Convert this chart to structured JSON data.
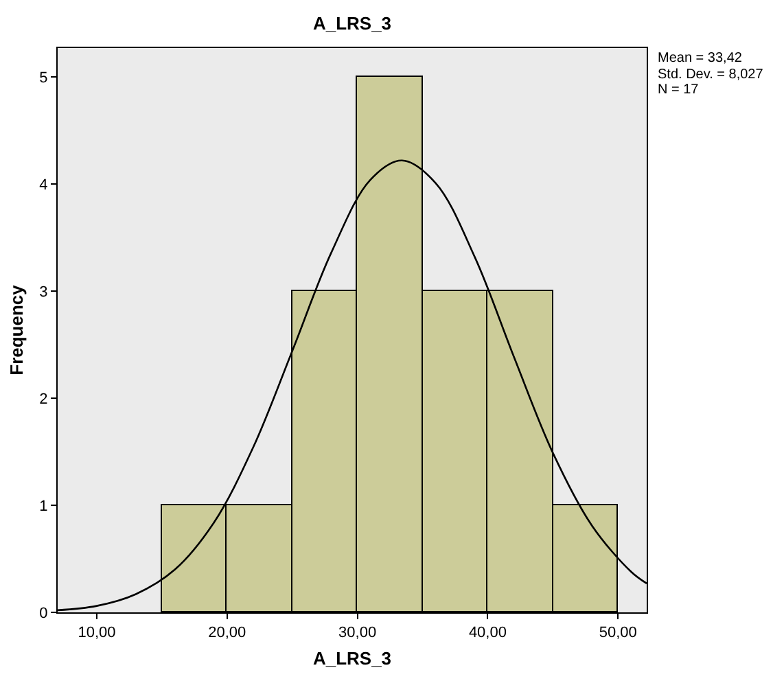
{
  "chart_data": {
    "type": "histogram",
    "title": "A_LRS_3",
    "xlabel": "A_LRS_3",
    "ylabel": "Frequency",
    "bins": [
      15,
      20,
      25,
      30,
      35,
      40,
      45,
      50
    ],
    "values": [
      1,
      1,
      3,
      5,
      3,
      3,
      1
    ],
    "color": "#cccc99",
    "series": [
      {
        "type": "line",
        "color": "#000000",
        "x": [
          7,
          10,
          13,
          16,
          19,
          22,
          25,
          28,
          31,
          33.42,
          36,
          39,
          42,
          45,
          48,
          51,
          52.2
        ],
        "values": [
          0.02,
          0.06,
          0.17,
          0.4,
          0.84,
          1.54,
          2.44,
          3.36,
          4.04,
          4.22,
          4.01,
          3.32,
          2.39,
          1.49,
          0.81,
          0.38,
          0.27
        ]
      }
    ],
    "xlim": [
      7,
      52.2
    ],
    "ylim": [
      0,
      5.27
    ],
    "xticks": [
      {
        "value": 10,
        "label": "10,00"
      },
      {
        "value": 20,
        "label": "20,00"
      },
      {
        "value": 30,
        "label": "30,00"
      },
      {
        "value": 40,
        "label": "40,00"
      },
      {
        "value": 50,
        "label": "50,00"
      }
    ],
    "yticks": [
      0,
      1,
      2,
      3,
      4,
      5
    ],
    "annotations": [
      "Mean = 33,42",
      "Std. Dev. = 8,027",
      "N = 17"
    ],
    "grid": false
  }
}
